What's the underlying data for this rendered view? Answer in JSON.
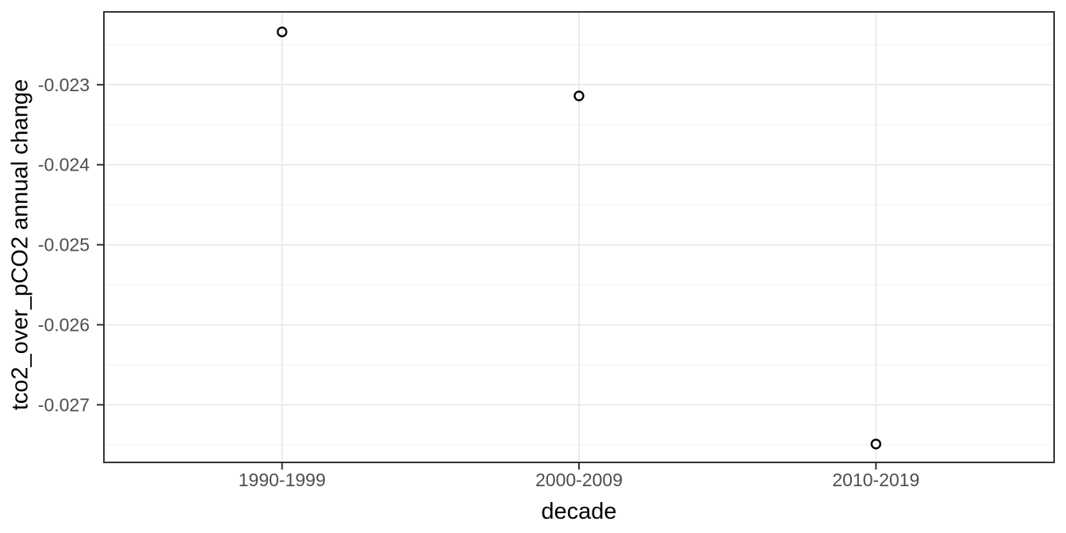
{
  "chart_data": {
    "type": "scatter",
    "title": "",
    "xlabel": "decade",
    "ylabel": "tco2_over_pCO2 annual change",
    "categories": [
      "1990-1999",
      "2000-2009",
      "2010-2019"
    ],
    "values": [
      -0.02234,
      -0.02314,
      -0.02749
    ],
    "ylim": [
      -0.02772,
      -0.02209
    ],
    "yticks": [
      -0.023,
      -0.024,
      -0.025,
      -0.026,
      -0.027
    ],
    "ytick_labels": [
      "-0.023",
      "-0.024",
      "-0.025",
      "-0.026",
      "-0.027"
    ],
    "x_band_range": [
      0.4,
      3.6
    ],
    "grid": true,
    "legend_position": "none",
    "marker": "open-circle",
    "colors": {
      "panel_bg": "#ffffff",
      "plot_bg": "#ffffff",
      "grid_major": "#ebebeb",
      "grid_minor": "#f2f2f2",
      "panel_border": "#333333",
      "tick_mark": "#333333",
      "tick_label": "#4d4d4d",
      "axis_title": "#000000",
      "point_stroke": "#000000"
    }
  }
}
